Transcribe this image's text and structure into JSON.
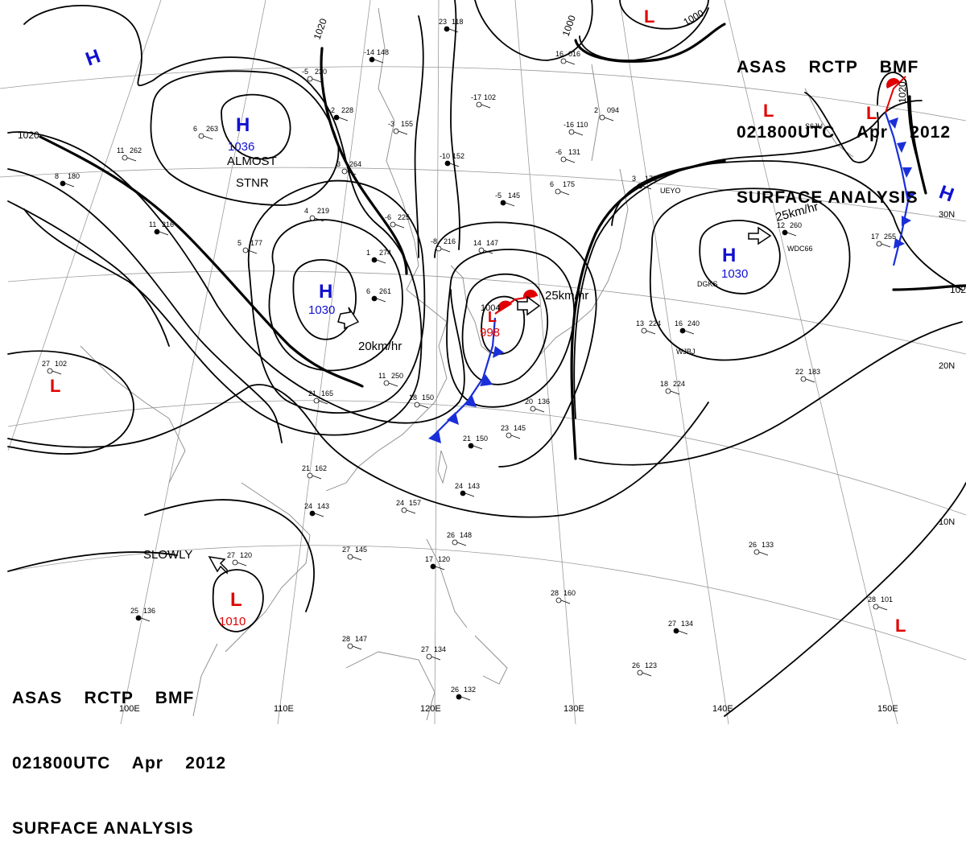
{
  "header": {
    "line1": "ASAS    RCTP    BMF",
    "line2": "021800UTC    Apr    2012",
    "line3": "SURFACE ANALYSIS"
  },
  "footer": {
    "line1": "ASAS    RCTP    BMF",
    "line2": "021800UTC    Apr    2012",
    "line3": "SURFACE ANALYSIS"
  },
  "colors": {
    "high": "#1010d0",
    "low": "#e00000",
    "isobar": "#000000",
    "grid": "#9a9a9a",
    "coast": "#8a8a8a",
    "cold_front": "#1a2fd8",
    "warm_front": "#e00000"
  },
  "pressure_centers": [
    {
      "type": "H",
      "pressure": "1036",
      "note": "ALMOST STNR"
    },
    {
      "type": "H",
      "pressure": "1030",
      "note": "20km/hr"
    },
    {
      "type": "H",
      "pressure": "1030",
      "note": "25km/hr"
    },
    {
      "type": "H",
      "pressure": "",
      "note": ""
    },
    {
      "type": "H",
      "pressure": "",
      "note": ""
    },
    {
      "type": "L",
      "pressure": "998",
      "note": "25km/hr"
    },
    {
      "type": "L",
      "pressure": "1010",
      "note": "SLOWLY"
    },
    {
      "type": "L",
      "pressure": "",
      "note": ""
    },
    {
      "type": "L",
      "pressure": "",
      "note": ""
    },
    {
      "type": "L",
      "pressure": "",
      "note": ""
    },
    {
      "type": "L",
      "pressure": "",
      "note": ""
    }
  ],
  "isobar_labels": [
    "1020",
    "1020",
    "1000",
    "1000",
    "1020",
    "102",
    "1004"
  ],
  "grid_labels": {
    "longitudes": [
      "100E",
      "110E",
      "120E",
      "130E",
      "140E",
      "150E"
    ],
    "latitudes": [
      "30N",
      "20N",
      "10N"
    ]
  },
  "station_codes": [
    "UEYO",
    "WDC66",
    "DGKS",
    "WJBJ",
    "S6JU"
  ],
  "station_obs": [
    {
      "t": "23",
      "p": "118"
    },
    {
      "t": "16",
      "p": "016"
    },
    {
      "t": "-5",
      "p": "230"
    },
    {
      "t": "-14",
      "p": "148"
    },
    {
      "t": "-17",
      "p": "102"
    },
    {
      "t": "-3",
      "p": "155"
    },
    {
      "t": "-2",
      "p": "228"
    },
    {
      "t": "6",
      "p": "263"
    },
    {
      "t": "3",
      "p": "264"
    },
    {
      "t": "-10",
      "p": "152"
    },
    {
      "t": "-16",
      "p": "110"
    },
    {
      "t": "-6",
      "p": "131"
    },
    {
      "t": "-5",
      "p": "145"
    },
    {
      "t": "4",
      "p": "219"
    },
    {
      "t": "-6",
      "p": "225"
    },
    {
      "t": "1",
      "p": "274"
    },
    {
      "t": "-8",
      "p": "216"
    },
    {
      "t": "14",
      "p": "147"
    },
    {
      "t": "6",
      "p": "261"
    },
    {
      "t": "11",
      "p": "250"
    },
    {
      "t": "18",
      "p": "150"
    },
    {
      "t": "21",
      "p": "150"
    },
    {
      "t": "23",
      "p": "145"
    },
    {
      "t": "20",
      "p": "136"
    },
    {
      "t": "24",
      "p": "143"
    },
    {
      "t": "24",
      "p": "157"
    },
    {
      "t": "26",
      "p": "148"
    },
    {
      "t": "17",
      "p": "120"
    },
    {
      "t": "27",
      "p": "145"
    },
    {
      "t": "27",
      "p": "120"
    },
    {
      "t": "25",
      "p": "136"
    },
    {
      "t": "28",
      "p": "147"
    },
    {
      "t": "27",
      "p": "134"
    },
    {
      "t": "26",
      "p": "132"
    },
    {
      "t": "28",
      "p": "160"
    },
    {
      "t": "26",
      "p": "133"
    },
    {
      "t": "27",
      "p": "134"
    },
    {
      "t": "26",
      "p": "123"
    },
    {
      "t": "28",
      "p": "101"
    },
    {
      "t": "16",
      "p": "240"
    },
    {
      "t": "18",
      "p": "224"
    },
    {
      "t": "22",
      "p": "183"
    },
    {
      "t": "12",
      "p": "260"
    },
    {
      "t": "17",
      "p": "255"
    },
    {
      "t": "11",
      "p": "262"
    },
    {
      "t": "8",
      "p": "180"
    },
    {
      "t": "27",
      "p": "102"
    },
    {
      "t": "21",
      "p": "162"
    },
    {
      "t": "11",
      "p": "216"
    },
    {
      "t": "5",
      "p": "177"
    },
    {
      "t": "6",
      "p": "175"
    },
    {
      "t": "3",
      "p": "178"
    },
    {
      "t": "2",
      "p": "094"
    },
    {
      "t": "21",
      "p": "165"
    },
    {
      "t": "24",
      "p": "143"
    },
    {
      "t": "13",
      "p": "224"
    }
  ]
}
